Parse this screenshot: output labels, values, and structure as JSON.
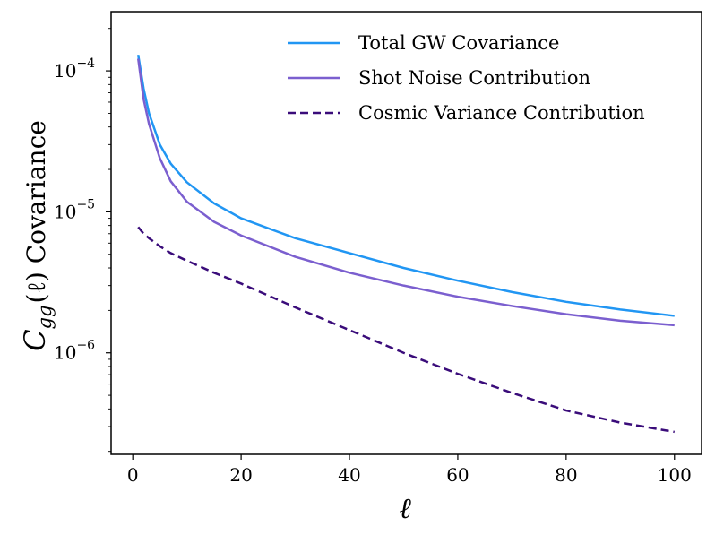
{
  "chart_data": {
    "type": "line",
    "title": "",
    "xlabel": "ℓ",
    "ylabel": "C_gg(ℓ) Covariance",
    "ylabel_main": "C",
    "ylabel_sub": "gg",
    "ylabel_rest": "(ℓ) Covariance",
    "yscale": "log",
    "xlim": [
      -4,
      105
    ],
    "ylim_log10": [
      -6.72,
      -3.58
    ],
    "x_ticks": [
      0,
      20,
      40,
      60,
      80,
      100
    ],
    "x_tick_labels": [
      "0",
      "20",
      "40",
      "60",
      "80",
      "100"
    ],
    "y_major_exponents": [
      -6,
      -5,
      -4
    ],
    "y_tick_labels": [
      {
        "base": "10",
        "exp": "−6"
      },
      {
        "base": "10",
        "exp": "−5"
      },
      {
        "base": "10",
        "exp": "−4"
      }
    ],
    "legend_position": "top-right",
    "series": [
      {
        "name": "Total GW Covariance",
        "color": "#2196f3",
        "style": "solid",
        "x": [
          1,
          2,
          3,
          5,
          7,
          10,
          15,
          20,
          30,
          40,
          50,
          60,
          70,
          80,
          90,
          100
        ],
        "y": [
          0.00013,
          7.5e-05,
          5e-05,
          3e-05,
          2.2e-05,
          1.62e-05,
          1.15e-05,
          9e-06,
          6.5e-06,
          5.1e-06,
          4e-06,
          3.25e-06,
          2.7e-06,
          2.3e-06,
          2.03e-06,
          1.83e-06
        ]
      },
      {
        "name": "Shot Noise Contribution",
        "color": "#7b5fcf",
        "style": "solid",
        "x": [
          1,
          2,
          3,
          5,
          7,
          10,
          15,
          20,
          30,
          40,
          50,
          60,
          70,
          80,
          90,
          100
        ],
        "y": [
          0.000122,
          6.3e-05,
          4.2e-05,
          2.4e-05,
          1.65e-05,
          1.18e-05,
          8.5e-06,
          6.8e-06,
          4.8e-06,
          3.7e-06,
          3e-06,
          2.5e-06,
          2.15e-06,
          1.88e-06,
          1.69e-06,
          1.57e-06
        ]
      },
      {
        "name": "Cosmic Variance Contribution",
        "color": "#3a0c7a",
        "style": "dashed",
        "x": [
          1,
          2,
          3,
          5,
          7,
          10,
          15,
          20,
          30,
          40,
          50,
          60,
          70,
          80,
          90,
          100
        ],
        "y": [
          7.8e-06,
          7e-06,
          6.5e-06,
          5.7e-06,
          5.1e-06,
          4.5e-06,
          3.7e-06,
          3.1e-06,
          2.1e-06,
          1.45e-06,
          1e-06,
          7.1e-07,
          5.2e-07,
          3.9e-07,
          3.2e-07,
          2.75e-07
        ]
      }
    ]
  }
}
